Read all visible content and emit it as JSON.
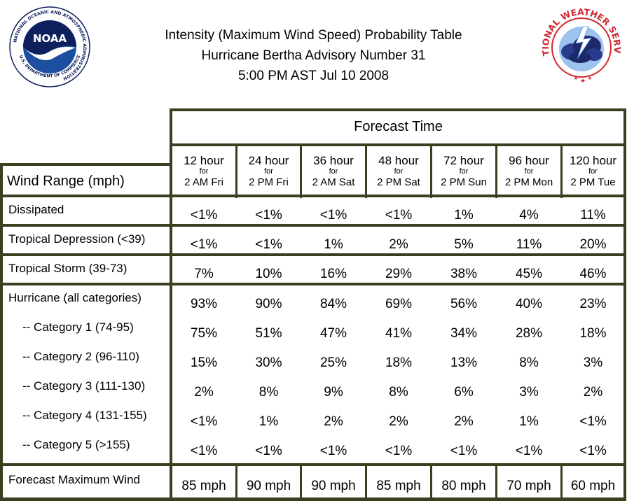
{
  "header": {
    "title_lines": [
      "Intensity (Maximum Wind Speed) Probability Table",
      "Hurricane Bertha Advisory Number 31",
      "5:00 PM AST Jul 10 2008"
    ],
    "noaa_logo": {
      "wordmark": "NOAA",
      "ring_text": "NATIONAL OCEANIC AND ATMOSPHERIC ADMINISTRATION",
      "bottom_text": "U.S. DEPARTMENT OF COMMERCE",
      "colors": {
        "blue": "#1c4fa0",
        "navy": "#0d1f5c",
        "white": "#ffffff"
      }
    },
    "nws_logo": {
      "ring_text": "NATIONAL WEATHER SERVICE",
      "colors": {
        "red": "#d22630",
        "navy": "#1c2a6b",
        "sky": "#4a8ad6"
      }
    }
  },
  "table": {
    "forecast_time_label": "Forecast Time",
    "wind_range_label": "Wind Range (mph)",
    "columns": [
      {
        "hour": "12 hour",
        "for": "for",
        "when": "2 AM Fri"
      },
      {
        "hour": "24 hour",
        "for": "for",
        "when": "2 PM Fri"
      },
      {
        "hour": "36 hour",
        "for": "for",
        "when": "2 AM Sat"
      },
      {
        "hour": "48 hour",
        "for": "for",
        "when": "2 PM Sat"
      },
      {
        "hour": "72 hour",
        "for": "for",
        "when": "2 PM Sun"
      },
      {
        "hour": "96 hour",
        "for": "for",
        "when": "2 PM Mon"
      },
      {
        "hour": "120 hour",
        "for": "for",
        "when": "2 PM Tue"
      }
    ],
    "rows": [
      {
        "label": "Dissipated",
        "values": [
          "<1%",
          "<1%",
          "<1%",
          "<1%",
          "1%",
          "4%",
          "11%"
        ]
      },
      {
        "label": "Tropical Depression (<39)",
        "values": [
          "<1%",
          "<1%",
          "1%",
          "2%",
          "5%",
          "11%",
          "20%"
        ]
      },
      {
        "label": "Tropical Storm (39-73)",
        "values": [
          "7%",
          "10%",
          "16%",
          "29%",
          "38%",
          "45%",
          "46%"
        ]
      },
      {
        "label": "Hurricane (all categories)",
        "values": [
          "93%",
          "90%",
          "84%",
          "69%",
          "56%",
          "40%",
          "23%"
        ]
      },
      {
        "label": "-- Category 1 (74-95)",
        "values": [
          "75%",
          "51%",
          "47%",
          "41%",
          "34%",
          "28%",
          "18%"
        ]
      },
      {
        "label": "-- Category 2 (96-110)",
        "values": [
          "15%",
          "30%",
          "25%",
          "18%",
          "13%",
          "8%",
          "3%"
        ]
      },
      {
        "label": "-- Category 3 (111-130)",
        "values": [
          "2%",
          "8%",
          "9%",
          "8%",
          "6%",
          "3%",
          "2%"
        ]
      },
      {
        "label": "-- Category 4 (131-155)",
        "values": [
          "<1%",
          "1%",
          "2%",
          "2%",
          "2%",
          "1%",
          "<1%"
        ]
      },
      {
        "label": "-- Category 5 (>155)",
        "values": [
          "<1%",
          "<1%",
          "<1%",
          "<1%",
          "<1%",
          "<1%",
          "<1%"
        ]
      },
      {
        "label": "Forecast Maximum Wind",
        "values": [
          "85 mph",
          "90 mph",
          "90 mph",
          "85 mph",
          "80 mph",
          "70 mph",
          "60 mph"
        ]
      }
    ],
    "border_color": "#3d3d1f"
  }
}
